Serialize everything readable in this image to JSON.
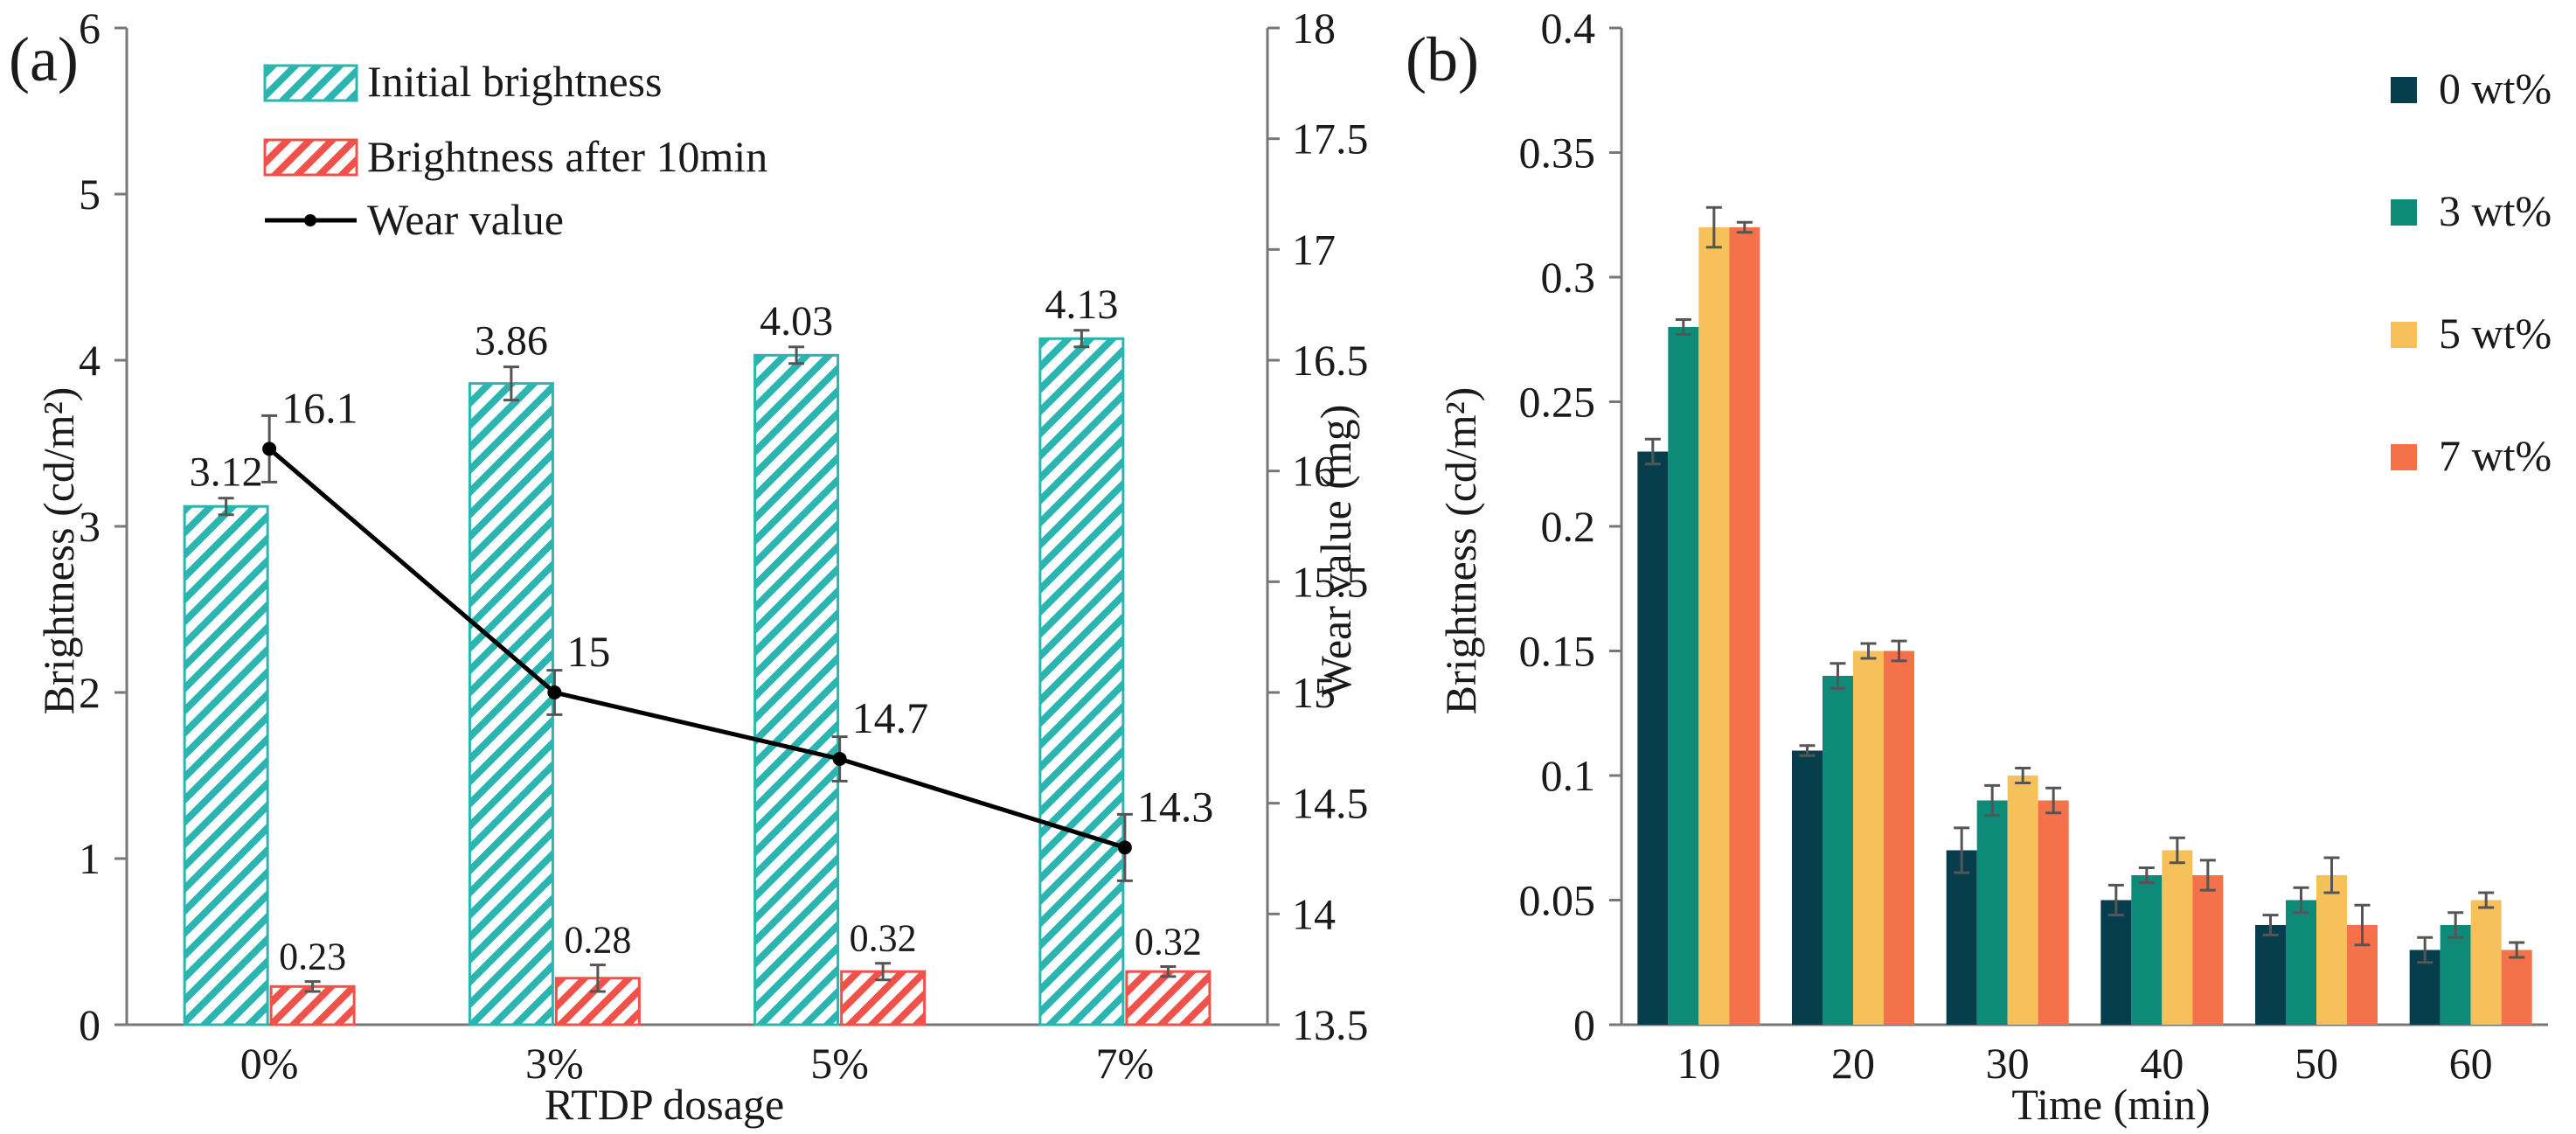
{
  "chart_data": [
    {
      "panel": "(a)",
      "type": "bar",
      "categories": [
        "0%",
        "3%",
        "5%",
        "7%"
      ],
      "xlabel": "RTDP dosage",
      "ylabel_left": "Brightness (cd/m²)",
      "ylabel_right": "Wear value (mg)",
      "ylim_left": [
        0,
        6
      ],
      "ylim_right": [
        13.5,
        18
      ],
      "yticks_left": [
        "0",
        "1",
        "2",
        "3",
        "4",
        "5",
        "6"
      ],
      "yticks_right": [
        "13.5",
        "14",
        "14.5",
        "15",
        "15.5",
        "16",
        "16.5",
        "17",
        "17.5",
        "18"
      ],
      "series": [
        {
          "name": "Initial brightness",
          "axis": "left",
          "kind": "bar",
          "color": "#2bb5b0",
          "values": [
            3.12,
            3.86,
            4.03,
            4.13
          ],
          "errors": [
            0.05,
            0.1,
            0.05,
            0.05
          ],
          "labels": [
            "3.12",
            "3.86",
            "4.03",
            "4.13"
          ]
        },
        {
          "name": "Brightness after 10min",
          "axis": "left",
          "kind": "bar",
          "color": "#f0524a",
          "values": [
            0.23,
            0.28,
            0.32,
            0.32
          ],
          "errors": [
            0.03,
            0.08,
            0.05,
            0.03
          ],
          "labels": [
            "0.23",
            "0.28",
            "0.32",
            "0.32"
          ]
        },
        {
          "name": "Wear value",
          "axis": "right",
          "kind": "line",
          "color": "#000000",
          "values": [
            16.1,
            15.0,
            14.7,
            14.3
          ],
          "errors": [
            0.15,
            0.1,
            0.1,
            0.15
          ],
          "labels": [
            "16.1",
            "15",
            "14.7",
            "14.3"
          ]
        }
      ],
      "legend": "top-left"
    },
    {
      "panel": "(b)",
      "type": "bar",
      "categories": [
        "10",
        "20",
        "30",
        "40",
        "50",
        "60"
      ],
      "xlabel": "Time (min)",
      "ylabel": "Brightness (cd/m²)",
      "ylim": [
        0,
        0.4
      ],
      "yticks": [
        "0",
        "0.05",
        "0.1",
        "0.15",
        "0.2",
        "0.25",
        "0.3",
        "0.35",
        "0.4"
      ],
      "series": [
        {
          "name": "0 wt%",
          "color": "#063e4d",
          "values": [
            0.23,
            0.11,
            0.07,
            0.05,
            0.04,
            0.03
          ],
          "errors": [
            0.005,
            0.002,
            0.009,
            0.006,
            0.004,
            0.005
          ]
        },
        {
          "name": "3 wt%",
          "color": "#0e8b78",
          "values": [
            0.28,
            0.14,
            0.09,
            0.06,
            0.05,
            0.04
          ],
          "errors": [
            0.003,
            0.005,
            0.006,
            0.003,
            0.005,
            0.005
          ]
        },
        {
          "name": "5 wt%",
          "color": "#f6c15a",
          "values": [
            0.32,
            0.15,
            0.1,
            0.07,
            0.06,
            0.05
          ],
          "errors": [
            0.008,
            0.003,
            0.003,
            0.005,
            0.007,
            0.003
          ]
        },
        {
          "name": "7 wt%",
          "color": "#f5714a",
          "values": [
            0.32,
            0.15,
            0.09,
            0.06,
            0.04,
            0.03
          ],
          "errors": [
            0.002,
            0.004,
            0.005,
            0.006,
            0.008,
            0.003
          ]
        }
      ],
      "legend": "top-right"
    }
  ]
}
